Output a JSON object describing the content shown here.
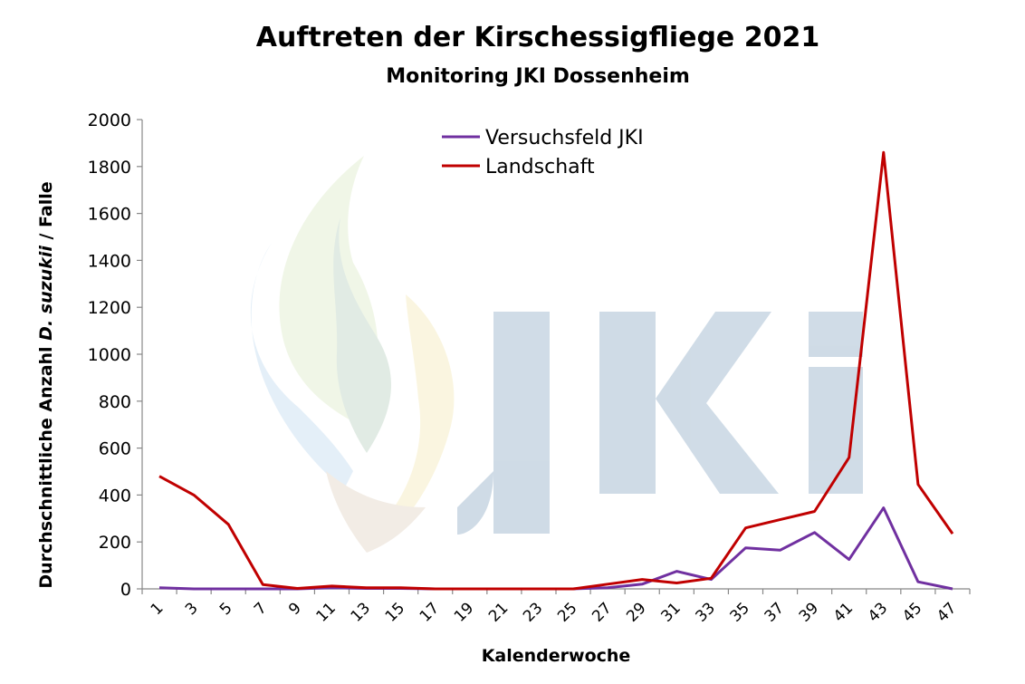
{
  "chart_data": {
    "type": "line",
    "title": "Auftreten der Kirschessigfliege 2021",
    "subtitle": "Monitoring JKI Dossenheim",
    "xlabel": "Kalenderwoche",
    "ylabel": {
      "pre": "Durchschnittliche Anzahl ",
      "italic": "D. suzukii",
      "post": " / Falle"
    },
    "ylim": [
      0,
      2000
    ],
    "yticks": [
      "0",
      "200",
      "400",
      "600",
      "800",
      "1000",
      "1200",
      "1400",
      "1600",
      "1800",
      "2000"
    ],
    "x": [
      "1",
      "3",
      "5",
      "7",
      "9",
      "11",
      "13",
      "15",
      "17",
      "19",
      "21",
      "23",
      "25",
      "27",
      "29",
      "31",
      "33",
      "35",
      "37",
      "39",
      "41",
      "43",
      "45",
      "47"
    ],
    "series": [
      {
        "name": "Versuchsfeld JKI",
        "color": "#7030a0",
        "values": [
          5,
          0,
          0,
          0,
          0,
          5,
          2,
          2,
          0,
          0,
          0,
          0,
          0,
          5,
          20,
          75,
          40,
          175,
          165,
          240,
          125,
          345,
          30,
          0
        ]
      },
      {
        "name": "Landschaft",
        "color": "#c00000",
        "values": [
          480,
          400,
          275,
          18,
          2,
          12,
          5,
          5,
          0,
          0,
          0,
          0,
          0,
          20,
          40,
          25,
          45,
          260,
          295,
          330,
          560,
          1860,
          445,
          235
        ]
      }
    ],
    "grid": false,
    "legend_position": "top-center",
    "watermark": "JKI logo"
  }
}
